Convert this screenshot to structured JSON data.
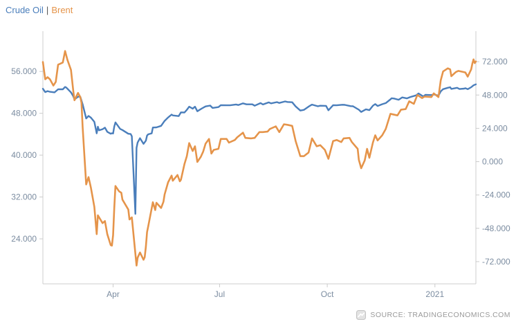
{
  "legend": {
    "items": [
      {
        "label": "Crude Oil",
        "color": "#4a7ebb"
      },
      {
        "label": "Brent",
        "color": "#e5944a"
      }
    ],
    "separator": "|"
  },
  "footer": {
    "source_text": "SOURCE: TRADINGECONOMICS.COM"
  },
  "chart_data": {
    "type": "line",
    "title": "",
    "xlabel": "",
    "ylabel": "",
    "x_unit": "days-from-start",
    "x_range": [
      0,
      370
    ],
    "x_ticks": [
      {
        "label": "Apr",
        "day": 60
      },
      {
        "label": "Jul",
        "day": 151
      },
      {
        "label": "Oct",
        "day": 243
      },
      {
        "label": "2021",
        "day": 335
      }
    ],
    "left_axis": {
      "series": "Brent",
      "range": [
        15.4,
        63.7
      ],
      "ticks": [
        24,
        32,
        40,
        48,
        56
      ],
      "tick_labels": [
        "24.000",
        "32.000",
        "40.000",
        "48.000",
        "56.000"
      ]
    },
    "right_axis": {
      "series": "Crude Oil",
      "range": [
        -88,
        94
      ],
      "ticks": [
        -72,
        -48,
        -24,
        0,
        24,
        48,
        72
      ],
      "tick_labels": [
        "-72.000",
        "-48.000",
        "-24.000",
        "0.000",
        "24.000",
        "48.000",
        "72.000"
      ]
    },
    "grid": "off",
    "legend_position": "top-left",
    "colors": {
      "axis": "#cccccc",
      "tick_text": "#7b8ca0"
    },
    "series": [
      {
        "name": "Crude Oil",
        "axis": "right",
        "color": "#4a7ebb",
        "width": 2.4,
        "points": [
          [
            0,
            52.5
          ],
          [
            2,
            50.1
          ],
          [
            4,
            50.8
          ],
          [
            6,
            50.3
          ],
          [
            10,
            49.9
          ],
          [
            13,
            52.1
          ],
          [
            17,
            52.1
          ],
          [
            19,
            53.8
          ],
          [
            20,
            53.4
          ],
          [
            24,
            49.9
          ],
          [
            26,
            47.1
          ],
          [
            27,
            44.8
          ],
          [
            30,
            46.8
          ],
          [
            32,
            46.8
          ],
          [
            34,
            41.3
          ],
          [
            37,
            31.1
          ],
          [
            39,
            32.9
          ],
          [
            41,
            31.7
          ],
          [
            44,
            28.7
          ],
          [
            46,
            20.4
          ],
          [
            47,
            25.2
          ],
          [
            48,
            22.6
          ],
          [
            51,
            23.4
          ],
          [
            53,
            24.5
          ],
          [
            55,
            21.5
          ],
          [
            58,
            20.1
          ],
          [
            59,
            20.5
          ],
          [
            60,
            20.3
          ],
          [
            61,
            25.3
          ],
          [
            62,
            28.3
          ],
          [
            66,
            23.6
          ],
          [
            68,
            22.8
          ],
          [
            73,
            20.1
          ],
          [
            75,
            19.9
          ],
          [
            76,
            18.3
          ],
          [
            79,
            -37.6
          ],
          [
            80,
            10.0
          ],
          [
            81,
            13.8
          ],
          [
            83,
            16.9
          ],
          [
            86,
            12.8
          ],
          [
            88,
            15.1
          ],
          [
            89,
            18.8
          ],
          [
            90,
            19.7
          ],
          [
            93,
            20.4
          ],
          [
            94,
            24.6
          ],
          [
            97,
            24.7
          ],
          [
            101,
            25.8
          ],
          [
            104,
            29.4
          ],
          [
            107,
            31.8
          ],
          [
            110,
            33.9
          ],
          [
            111,
            33.3
          ],
          [
            116,
            32.8
          ],
          [
            118,
            35.5
          ],
          [
            121,
            35.4
          ],
          [
            123,
            37.3
          ],
          [
            125,
            39.6
          ],
          [
            128,
            38.2
          ],
          [
            130,
            39.6
          ],
          [
            132,
            36.3
          ],
          [
            136,
            38.4
          ],
          [
            139,
            39.8
          ],
          [
            143,
            40.4
          ],
          [
            145,
            38.7
          ],
          [
            150,
            39.3
          ],
          [
            152,
            40.7
          ],
          [
            157,
            40.6
          ],
          [
            160,
            40.6
          ],
          [
            165,
            41.2
          ],
          [
            167,
            40.8
          ],
          [
            171,
            42.0
          ],
          [
            174,
            41.3
          ],
          [
            179,
            41.3
          ],
          [
            181,
            40.3
          ],
          [
            186,
            42.2
          ],
          [
            188,
            41.2
          ],
          [
            193,
            42.7
          ],
          [
            195,
            42.0
          ],
          [
            200,
            42.9
          ],
          [
            202,
            42.3
          ],
          [
            207,
            43.4
          ],
          [
            209,
            43.0
          ],
          [
            213,
            42.8
          ],
          [
            216,
            39.8
          ],
          [
            220,
            36.8
          ],
          [
            223,
            37.3
          ],
          [
            228,
            40.2
          ],
          [
            230,
            41.1
          ],
          [
            235,
            39.9
          ],
          [
            237,
            40.3
          ],
          [
            242,
            40.2
          ],
          [
            244,
            37.0
          ],
          [
            248,
            40.7
          ],
          [
            251,
            40.6
          ],
          [
            256,
            41.0
          ],
          [
            258,
            40.9
          ],
          [
            263,
            40.0
          ],
          [
            265,
            39.9
          ],
          [
            270,
            37.4
          ],
          [
            272,
            35.8
          ],
          [
            276,
            37.7
          ],
          [
            279,
            37.1
          ],
          [
            282,
            40.3
          ],
          [
            284,
            41.5
          ],
          [
            286,
            40.1
          ],
          [
            290,
            41.4
          ],
          [
            293,
            42.2
          ],
          [
            297,
            44.9
          ],
          [
            298,
            45.7
          ],
          [
            300,
            45.5
          ],
          [
            304,
            44.6
          ],
          [
            307,
            46.3
          ],
          [
            311,
            45.6
          ],
          [
            314,
            46.6
          ],
          [
            319,
            47.8
          ],
          [
            321,
            49.1
          ],
          [
            325,
            47.0
          ],
          [
            327,
            48.2
          ],
          [
            332,
            48.0
          ],
          [
            334,
            48.5
          ],
          [
            338,
            47.6
          ],
          [
            340,
            50.6
          ],
          [
            342,
            52.2
          ],
          [
            346,
            53.2
          ],
          [
            348,
            53.6
          ],
          [
            349,
            52.4
          ],
          [
            354,
            53.2
          ],
          [
            356,
            52.3
          ],
          [
            360,
            52.6
          ],
          [
            361,
            52.9
          ],
          [
            363,
            52.2
          ],
          [
            366,
            53.6
          ],
          [
            368,
            55.0
          ],
          [
            370,
            55.7
          ]
        ]
      },
      {
        "name": "Brent",
        "axis": "left",
        "color": "#e5944a",
        "width": 2.6,
        "points": [
          [
            0,
            57.8
          ],
          [
            2,
            54.5
          ],
          [
            4,
            54.9
          ],
          [
            6,
            54.5
          ],
          [
            9,
            53.3
          ],
          [
            11,
            54.0
          ],
          [
            13,
            57.3
          ],
          [
            17,
            57.7
          ],
          [
            19,
            59.9
          ],
          [
            21,
            58.2
          ],
          [
            24,
            56.3
          ],
          [
            26,
            52.2
          ],
          [
            27,
            50.5
          ],
          [
            30,
            51.9
          ],
          [
            32,
            51.1
          ],
          [
            33,
            50.0
          ],
          [
            34,
            45.3
          ],
          [
            37,
            34.4
          ],
          [
            39,
            35.8
          ],
          [
            41,
            33.8
          ],
          [
            44,
            30.1
          ],
          [
            46,
            24.9
          ],
          [
            47,
            28.5
          ],
          [
            51,
            27.0
          ],
          [
            53,
            27.4
          ],
          [
            55,
            24.9
          ],
          [
            58,
            22.8
          ],
          [
            59,
            22.7
          ],
          [
            60,
            24.7
          ],
          [
            61,
            29.9
          ],
          [
            62,
            34.1
          ],
          [
            65,
            33.1
          ],
          [
            67,
            32.8
          ],
          [
            68,
            31.5
          ],
          [
            73,
            29.6
          ],
          [
            74,
            27.7
          ],
          [
            76,
            28.1
          ],
          [
            80,
            18.9
          ],
          [
            81,
            20.4
          ],
          [
            83,
            21.4
          ],
          [
            86,
            20.0
          ],
          [
            87,
            20.5
          ],
          [
            88,
            22.5
          ],
          [
            89,
            25.3
          ],
          [
            90,
            26.4
          ],
          [
            94,
            31.0
          ],
          [
            96,
            29.5
          ],
          [
            97,
            30.9
          ],
          [
            101,
            29.9
          ],
          [
            103,
            31.1
          ],
          [
            104,
            32.5
          ],
          [
            107,
            34.8
          ],
          [
            110,
            36.1
          ],
          [
            111,
            35.1
          ],
          [
            115,
            36.2
          ],
          [
            117,
            35.0
          ],
          [
            118,
            35.3
          ],
          [
            121,
            38.3
          ],
          [
            123,
            39.8
          ],
          [
            125,
            42.3
          ],
          [
            128,
            40.8
          ],
          [
            130,
            41.7
          ],
          [
            132,
            38.7
          ],
          [
            135,
            39.7
          ],
          [
            137,
            40.7
          ],
          [
            139,
            42.2
          ],
          [
            142,
            43.1
          ],
          [
            144,
            40.3
          ],
          [
            146,
            41.0
          ],
          [
            150,
            41.2
          ],
          [
            152,
            43.1
          ],
          [
            157,
            43.1
          ],
          [
            159,
            42.4
          ],
          [
            164,
            42.9
          ],
          [
            166,
            43.4
          ],
          [
            171,
            44.3
          ],
          [
            173,
            43.3
          ],
          [
            178,
            43.2
          ],
          [
            181,
            43.3
          ],
          [
            185,
            44.4
          ],
          [
            188,
            44.4
          ],
          [
            192,
            44.5
          ],
          [
            194,
            45.0
          ],
          [
            199,
            45.5
          ],
          [
            202,
            44.4
          ],
          [
            206,
            45.9
          ],
          [
            209,
            45.8
          ],
          [
            213,
            45.6
          ],
          [
            216,
            42.7
          ],
          [
            220,
            39.8
          ],
          [
            223,
            39.8
          ],
          [
            227,
            40.5
          ],
          [
            230,
            43.2
          ],
          [
            234,
            41.7
          ],
          [
            237,
            41.9
          ],
          [
            241,
            41.0
          ],
          [
            244,
            39.3
          ],
          [
            248,
            42.7
          ],
          [
            251,
            42.9
          ],
          [
            255,
            42.5
          ],
          [
            257,
            43.2
          ],
          [
            262,
            43.3
          ],
          [
            264,
            42.5
          ],
          [
            269,
            41.2
          ],
          [
            270,
            39.1
          ],
          [
            272,
            37.5
          ],
          [
            275,
            39.0
          ],
          [
            277,
            41.2
          ],
          [
            279,
            39.5
          ],
          [
            282,
            42.4
          ],
          [
            284,
            43.8
          ],
          [
            286,
            42.8
          ],
          [
            290,
            43.8
          ],
          [
            293,
            45.0
          ],
          [
            297,
            47.9
          ],
          [
            299,
            47.8
          ],
          [
            303,
            47.6
          ],
          [
            306,
            48.7
          ],
          [
            310,
            48.8
          ],
          [
            313,
            50.3
          ],
          [
            317,
            49.8
          ],
          [
            320,
            51.5
          ],
          [
            324,
            50.9
          ],
          [
            326,
            51.2
          ],
          [
            332,
            51.1
          ],
          [
            334,
            51.8
          ],
          [
            338,
            51.1
          ],
          [
            340,
            54.3
          ],
          [
            342,
            56.0
          ],
          [
            346,
            56.6
          ],
          [
            348,
            56.4
          ],
          [
            349,
            55.1
          ],
          [
            353,
            55.9
          ],
          [
            355,
            56.1
          ],
          [
            359,
            55.9
          ],
          [
            361,
            55.8
          ],
          [
            363,
            55.0
          ],
          [
            366,
            56.4
          ],
          [
            367,
            57.5
          ],
          [
            368,
            58.3
          ],
          [
            369,
            57.6
          ],
          [
            370,
            57.9
          ]
        ]
      }
    ]
  }
}
